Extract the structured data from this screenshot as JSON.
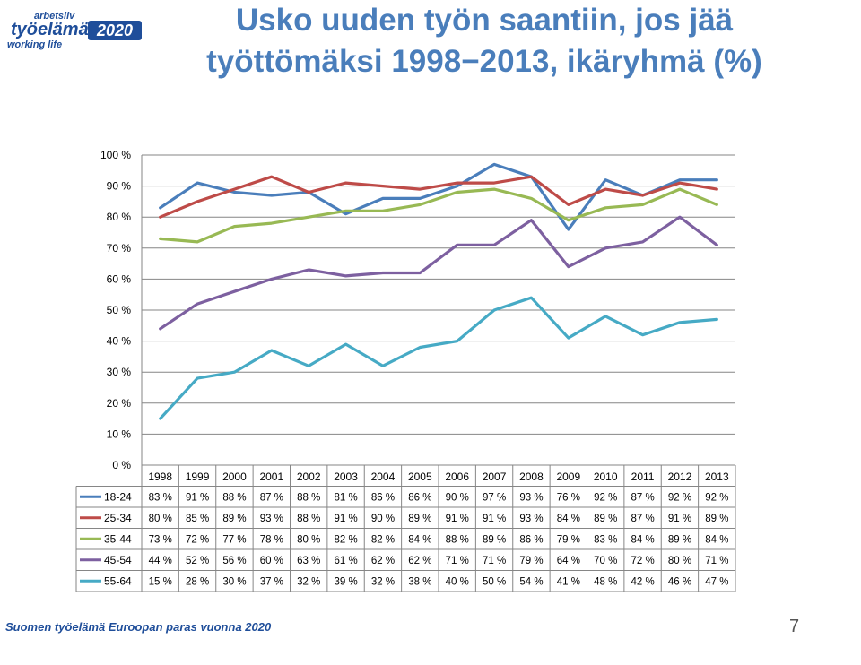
{
  "logo": {
    "small": "arbetsliv",
    "main": "työelämä",
    "year": "2020",
    "sub": "working life"
  },
  "title_line1": "Usko uuden työn saantiin, jos jää",
  "title_line2": "työttömäksi 1998−2013, ikäryhmä (%)",
  "footer": "Suomen työelämä Euroopan paras vuonna 2020",
  "page_number": "7",
  "chart_data": {
    "type": "line",
    "categories": [
      "1998",
      "1999",
      "2000",
      "2001",
      "2002",
      "2003",
      "2004",
      "2005",
      "2006",
      "2007",
      "2008",
      "2009",
      "2010",
      "2011",
      "2012",
      "2013"
    ],
    "ylim": [
      0,
      100
    ],
    "y_ticks": [
      0,
      10,
      20,
      30,
      40,
      50,
      60,
      70,
      80,
      90,
      100
    ],
    "grid": true,
    "legend": "data-table",
    "series": [
      {
        "name": "18-24",
        "color": "#4a7ebb",
        "values": [
          83,
          91,
          88,
          87,
          88,
          81,
          86,
          86,
          90,
          97,
          93,
          76,
          92,
          87,
          92,
          92
        ]
      },
      {
        "name": "25-34",
        "color": "#be4b48",
        "values": [
          80,
          85,
          89,
          93,
          88,
          91,
          90,
          89,
          91,
          91,
          93,
          84,
          89,
          87,
          91,
          89
        ]
      },
      {
        "name": "35-44",
        "color": "#98b954",
        "values": [
          73,
          72,
          77,
          78,
          80,
          82,
          82,
          84,
          88,
          89,
          86,
          79,
          83,
          84,
          89,
          84
        ]
      },
      {
        "name": "45-54",
        "color": "#7d60a0",
        "values": [
          44,
          52,
          56,
          60,
          63,
          61,
          62,
          62,
          71,
          71,
          79,
          64,
          70,
          72,
          80,
          71
        ]
      },
      {
        "name": "55-64",
        "color": "#46aac5",
        "values": [
          15,
          28,
          30,
          37,
          32,
          39,
          32,
          38,
          40,
          50,
          54,
          41,
          48,
          42,
          46,
          47
        ]
      }
    ]
  }
}
